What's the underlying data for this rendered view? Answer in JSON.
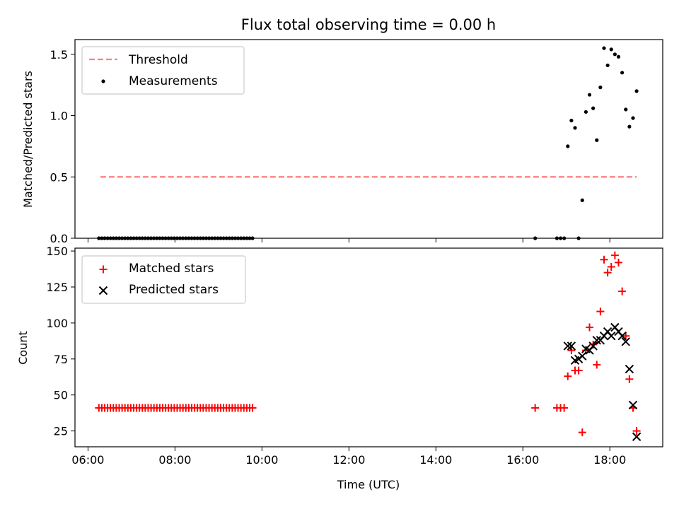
{
  "figure": {
    "title": "Flux total observing time = 0.00 h",
    "xlabel": "Time (UTC)"
  },
  "colors": {
    "threshold": "#ff7f7f",
    "measurements": "#000000",
    "matched": "#ff0000",
    "predicted": "#000000"
  },
  "chart_data": [
    {
      "type": "scatter",
      "panel": "top",
      "ylabel": "Matched/Predicted stars",
      "xlim": [
        "05:42",
        "19:13"
      ],
      "ylim": [
        0,
        1.62
      ],
      "xticks": [
        "06:00",
        "08:00",
        "10:00",
        "12:00",
        "14:00",
        "16:00",
        "18:00"
      ],
      "yticks": [
        "0.0",
        "0.5",
        "1.0",
        "1.5"
      ],
      "legend": {
        "position": "upper left",
        "entries": [
          "Threshold",
          "Measurements"
        ]
      },
      "threshold": {
        "name": "Threshold",
        "value": 0.5,
        "x": [
          "06:17",
          "18:37"
        ]
      },
      "measurements": {
        "name": "Measurements",
        "points": [
          [
            "06:15",
            0
          ],
          [
            "06:19",
            0
          ],
          [
            "06:23",
            0
          ],
          [
            "06:27",
            0
          ],
          [
            "06:31",
            0
          ],
          [
            "06:35",
            0
          ],
          [
            "06:39",
            0
          ],
          [
            "06:43",
            0
          ],
          [
            "06:47",
            0
          ],
          [
            "06:51",
            0
          ],
          [
            "06:55",
            0
          ],
          [
            "06:59",
            0
          ],
          [
            "07:03",
            0
          ],
          [
            "07:07",
            0
          ],
          [
            "07:11",
            0
          ],
          [
            "07:15",
            0
          ],
          [
            "07:19",
            0
          ],
          [
            "07:23",
            0
          ],
          [
            "07:27",
            0
          ],
          [
            "07:31",
            0
          ],
          [
            "07:35",
            0
          ],
          [
            "07:39",
            0
          ],
          [
            "07:43",
            0
          ],
          [
            "07:47",
            0
          ],
          [
            "07:51",
            0
          ],
          [
            "07:55",
            0
          ],
          [
            "07:59",
            0
          ],
          [
            "08:03",
            0
          ],
          [
            "08:07",
            0
          ],
          [
            "08:11",
            0
          ],
          [
            "08:15",
            0
          ],
          [
            "08:19",
            0
          ],
          [
            "08:23",
            0
          ],
          [
            "08:27",
            0
          ],
          [
            "08:31",
            0
          ],
          [
            "08:35",
            0
          ],
          [
            "08:39",
            0
          ],
          [
            "08:43",
            0
          ],
          [
            "08:47",
            0
          ],
          [
            "08:51",
            0
          ],
          [
            "08:55",
            0
          ],
          [
            "08:59",
            0
          ],
          [
            "09:03",
            0
          ],
          [
            "09:07",
            0
          ],
          [
            "09:11",
            0
          ],
          [
            "09:15",
            0
          ],
          [
            "09:19",
            0
          ],
          [
            "09:23",
            0
          ],
          [
            "09:27",
            0
          ],
          [
            "09:31",
            0
          ],
          [
            "09:35",
            0
          ],
          [
            "09:39",
            0
          ],
          [
            "09:43",
            0
          ],
          [
            "09:47",
            0
          ],
          [
            "16:17",
            0
          ],
          [
            "16:47",
            0
          ],
          [
            "16:52",
            0
          ],
          [
            "16:57",
            0
          ],
          [
            "17:02",
            0.75
          ],
          [
            "17:07",
            0.96
          ],
          [
            "17:12",
            0.9
          ],
          [
            "17:17",
            0
          ],
          [
            "17:22",
            0.31
          ],
          [
            "17:27",
            1.03
          ],
          [
            "17:32",
            1.17
          ],
          [
            "17:37",
            1.06
          ],
          [
            "17:42",
            0.8
          ],
          [
            "17:47",
            1.23
          ],
          [
            "17:52",
            1.55
          ],
          [
            "17:57",
            1.41
          ],
          [
            "18:02",
            1.54
          ],
          [
            "18:07",
            1.5
          ],
          [
            "18:12",
            1.48
          ],
          [
            "18:17",
            1.35
          ],
          [
            "18:22",
            1.05
          ],
          [
            "18:27",
            0.91
          ],
          [
            "18:32",
            0.98
          ],
          [
            "18:37",
            1.2
          ]
        ]
      }
    },
    {
      "type": "scatter",
      "panel": "bottom",
      "ylabel": "Count",
      "xlabel": "Time (UTC)",
      "xlim": [
        "05:42",
        "19:13"
      ],
      "ylim": [
        14,
        152
      ],
      "xticks": [
        "06:00",
        "08:00",
        "10:00",
        "12:00",
        "14:00",
        "16:00",
        "18:00"
      ],
      "yticks": [
        "25",
        "50",
        "75",
        "100",
        "125",
        "150"
      ],
      "legend": {
        "position": "upper left",
        "entries": [
          "Matched stars",
          "Predicted stars"
        ]
      },
      "series": [
        {
          "name": "Matched stars",
          "marker": "plus",
          "points": [
            [
              "06:15",
              41
            ],
            [
              "06:19",
              41
            ],
            [
              "06:23",
              41
            ],
            [
              "06:27",
              41
            ],
            [
              "06:31",
              41
            ],
            [
              "06:35",
              41
            ],
            [
              "06:39",
              41
            ],
            [
              "06:43",
              41
            ],
            [
              "06:47",
              41
            ],
            [
              "06:51",
              41
            ],
            [
              "06:55",
              41
            ],
            [
              "06:59",
              41
            ],
            [
              "07:03",
              41
            ],
            [
              "07:07",
              41
            ],
            [
              "07:11",
              41
            ],
            [
              "07:15",
              41
            ],
            [
              "07:19",
              41
            ],
            [
              "07:23",
              41
            ],
            [
              "07:27",
              41
            ],
            [
              "07:31",
              41
            ],
            [
              "07:35",
              41
            ],
            [
              "07:39",
              41
            ],
            [
              "07:43",
              41
            ],
            [
              "07:47",
              41
            ],
            [
              "07:51",
              41
            ],
            [
              "07:55",
              41
            ],
            [
              "07:59",
              41
            ],
            [
              "08:03",
              41
            ],
            [
              "08:07",
              41
            ],
            [
              "08:11",
              41
            ],
            [
              "08:15",
              41
            ],
            [
              "08:19",
              41
            ],
            [
              "08:23",
              41
            ],
            [
              "08:27",
              41
            ],
            [
              "08:31",
              41
            ],
            [
              "08:35",
              41
            ],
            [
              "08:39",
              41
            ],
            [
              "08:43",
              41
            ],
            [
              "08:47",
              41
            ],
            [
              "08:51",
              41
            ],
            [
              "08:55",
              41
            ],
            [
              "08:59",
              41
            ],
            [
              "09:03",
              41
            ],
            [
              "09:07",
              41
            ],
            [
              "09:11",
              41
            ],
            [
              "09:15",
              41
            ],
            [
              "09:19",
              41
            ],
            [
              "09:23",
              41
            ],
            [
              "09:27",
              41
            ],
            [
              "09:31",
              41
            ],
            [
              "09:35",
              41
            ],
            [
              "09:39",
              41
            ],
            [
              "09:43",
              41
            ],
            [
              "09:47",
              41
            ],
            [
              "16:17",
              41
            ],
            [
              "16:47",
              41
            ],
            [
              "16:52",
              41
            ],
            [
              "16:57",
              41
            ],
            [
              "17:02",
              63
            ],
            [
              "17:07",
              81
            ],
            [
              "17:12",
              67
            ],
            [
              "17:17",
              67
            ],
            [
              "17:22",
              24
            ],
            [
              "17:27",
              81
            ],
            [
              "17:32",
              97
            ],
            [
              "17:37",
              85
            ],
            [
              "17:42",
              71
            ],
            [
              "17:47",
              108
            ],
            [
              "17:52",
              144
            ],
            [
              "17:57",
              135
            ],
            [
              "18:02",
              139
            ],
            [
              "18:07",
              147
            ],
            [
              "18:12",
              142
            ],
            [
              "18:17",
              122
            ],
            [
              "18:22",
              91
            ],
            [
              "18:27",
              61
            ],
            [
              "18:32",
              41
            ],
            [
              "18:37",
              25
            ]
          ]
        },
        {
          "name": "Predicted stars",
          "marker": "x",
          "points": [
            [
              "17:02",
              84
            ],
            [
              "17:07",
              84
            ],
            [
              "17:12",
              74
            ],
            [
              "17:17",
              75
            ],
            [
              "17:22",
              77
            ],
            [
              "17:27",
              82
            ],
            [
              "17:32",
              81
            ],
            [
              "17:37",
              84
            ],
            [
              "17:42",
              88
            ],
            [
              "17:47",
              88
            ],
            [
              "17:52",
              91
            ],
            [
              "17:57",
              94
            ],
            [
              "18:02",
              91
            ],
            [
              "18:07",
              97
            ],
            [
              "18:12",
              94
            ],
            [
              "18:17",
              91
            ],
            [
              "18:22",
              87
            ],
            [
              "18:27",
              68
            ],
            [
              "18:32",
              43
            ],
            [
              "18:37",
              21
            ]
          ]
        }
      ]
    }
  ]
}
